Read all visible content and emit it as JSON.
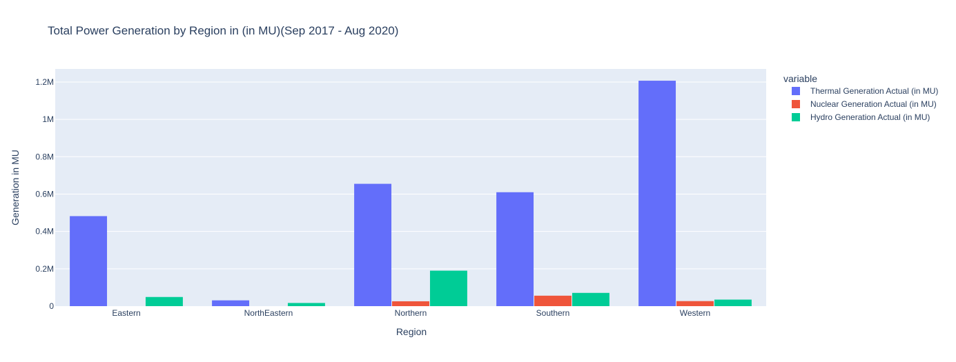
{
  "chart_data": {
    "type": "bar",
    "title": "Total Power Generation by Region in (in MU)(Sep 2017 - Aug 2020)",
    "xlabel": "Region",
    "ylabel": "Generation in MU",
    "categories": [
      "Eastern",
      "NorthEastern",
      "Northern",
      "Southern",
      "Western"
    ],
    "ylim": [
      0,
      1270000
    ],
    "yticks": [
      0,
      200000,
      400000,
      600000,
      800000,
      1000000,
      1200000
    ],
    "ytick_labels": [
      "0",
      "0.2M",
      "0.4M",
      "0.6M",
      "0.8M",
      "1M",
      "1.2M"
    ],
    "legend_title": "variable",
    "legend_position": "right",
    "grid": true,
    "series": [
      {
        "name": "Thermal Generation Actual (in MU)",
        "color": "#636efa",
        "values": [
          482000,
          31000,
          655000,
          610000,
          1207000
        ]
      },
      {
        "name": "Nuclear Generation Actual (in MU)",
        "color": "#ef553b",
        "values": [
          0,
          0,
          26000,
          56000,
          27000
        ]
      },
      {
        "name": "Hydro Generation Actual (in MU)",
        "color": "#00cc96",
        "values": [
          49000,
          17000,
          190000,
          71000,
          35000
        ]
      }
    ],
    "plot_background": "#e5ecf6"
  }
}
